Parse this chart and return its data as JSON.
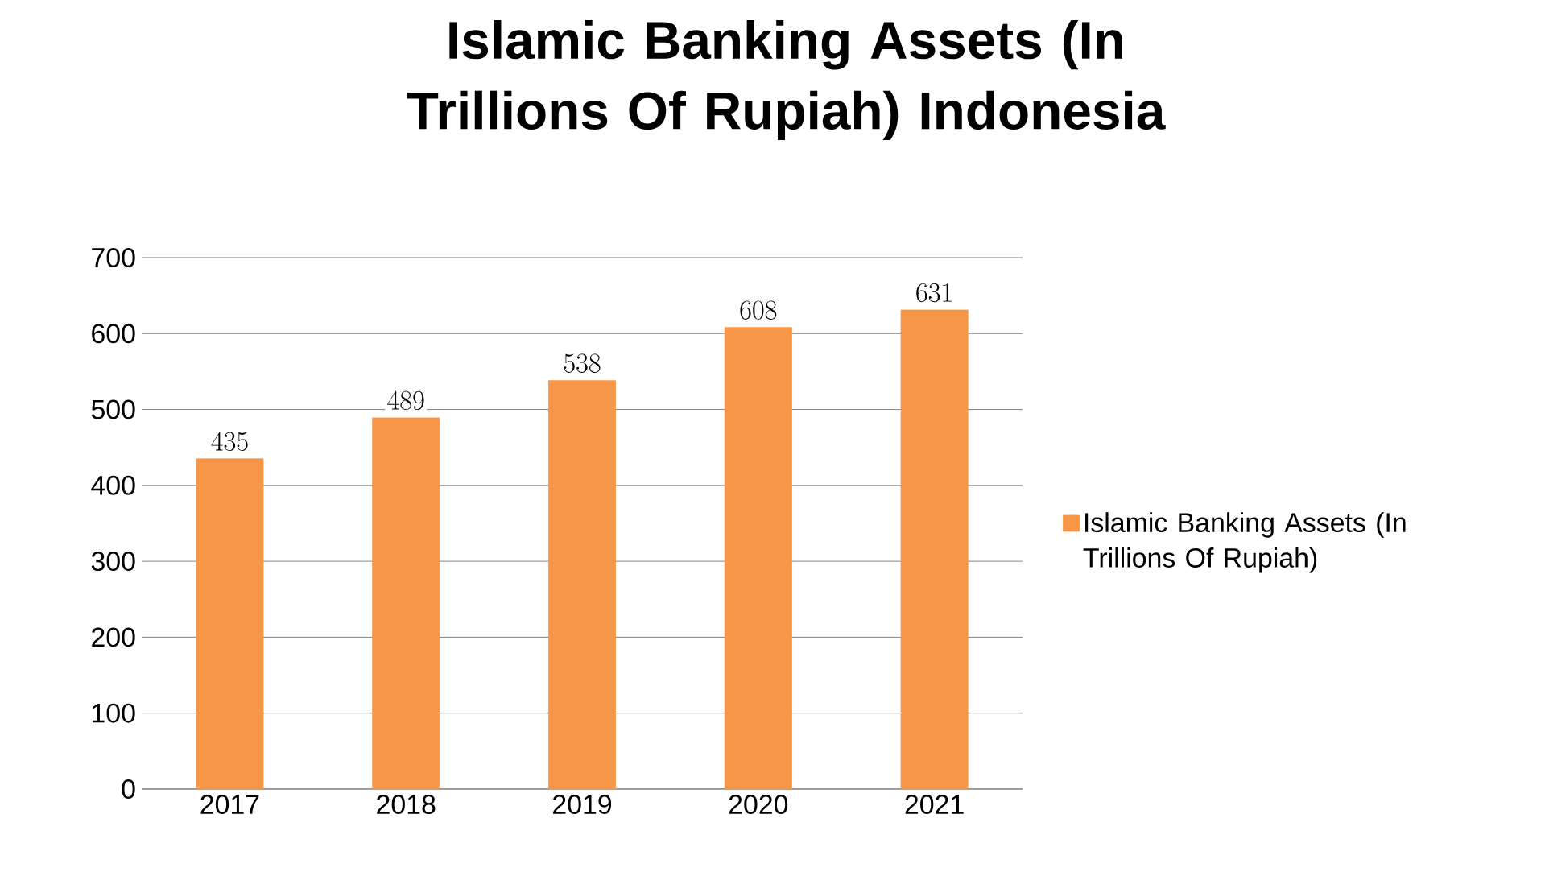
{
  "chart_data": {
    "type": "bar",
    "title": "Islamic Banking Assets (In Trillions Of Rupiah) Indonesia",
    "categories": [
      "2017",
      "2018",
      "2019",
      "2020",
      "2021"
    ],
    "series": [
      {
        "name": "Islamic Banking Assets (In Trillions Of Rupiah)",
        "color": "#f79646",
        "values": [
          435,
          489,
          538,
          608,
          631
        ]
      }
    ],
    "ylim": [
      0,
      700
    ],
    "yticks": [
      0,
      100,
      200,
      300,
      400,
      500,
      600,
      700
    ],
    "grid": "y",
    "legend": "right",
    "data_labels": true
  }
}
